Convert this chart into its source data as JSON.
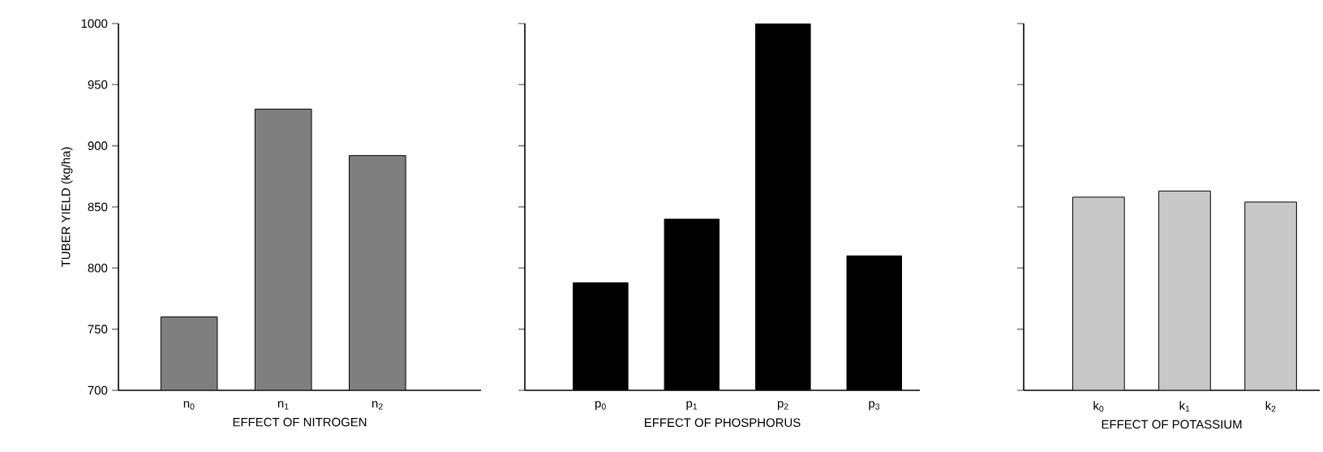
{
  "chart_data": [
    {
      "type": "bar",
      "ylabel": "TUBER YIELD (kg/ha)",
      "xlabel": "EFFECT OF NITROGEN",
      "categories": [
        "n$_{0}$",
        "n$_{1}$",
        "n$_{2}$"
      ],
      "values": [
        760,
        930,
        892
      ],
      "color": "#7f7f7f",
      "ylim": [
        700,
        1000
      ],
      "yticks": [
        700,
        750,
        800,
        850,
        900,
        950,
        1000
      ]
    },
    {
      "type": "bar",
      "xlabel": "EFFECT OF PHOSPHORUS",
      "categories": [
        "p$_{0}$",
        "p$_{1}$",
        "p$_{2}$",
        "p$_{3}$"
      ],
      "values": [
        788,
        840,
        1000,
        810
      ],
      "color": "#000000",
      "ylim": [
        700,
        1000
      ],
      "yticks": [
        700,
        750,
        800,
        850,
        900,
        950,
        1000
      ],
      "tick_labels": "x"
    },
    {
      "type": "bar",
      "xlabel": "EFFECT OF POTASSIUM",
      "categories": [
        "k$_{0}$",
        "k$_{1}$",
        "k$_{2}$"
      ],
      "values": [
        858,
        863,
        854
      ],
      "color": "#c8c8c8",
      "ylim": [
        700,
        1000
      ],
      "yticks": [
        700,
        750,
        800,
        850,
        900,
        950,
        1000
      ],
      "tick_labels": "x"
    }
  ]
}
